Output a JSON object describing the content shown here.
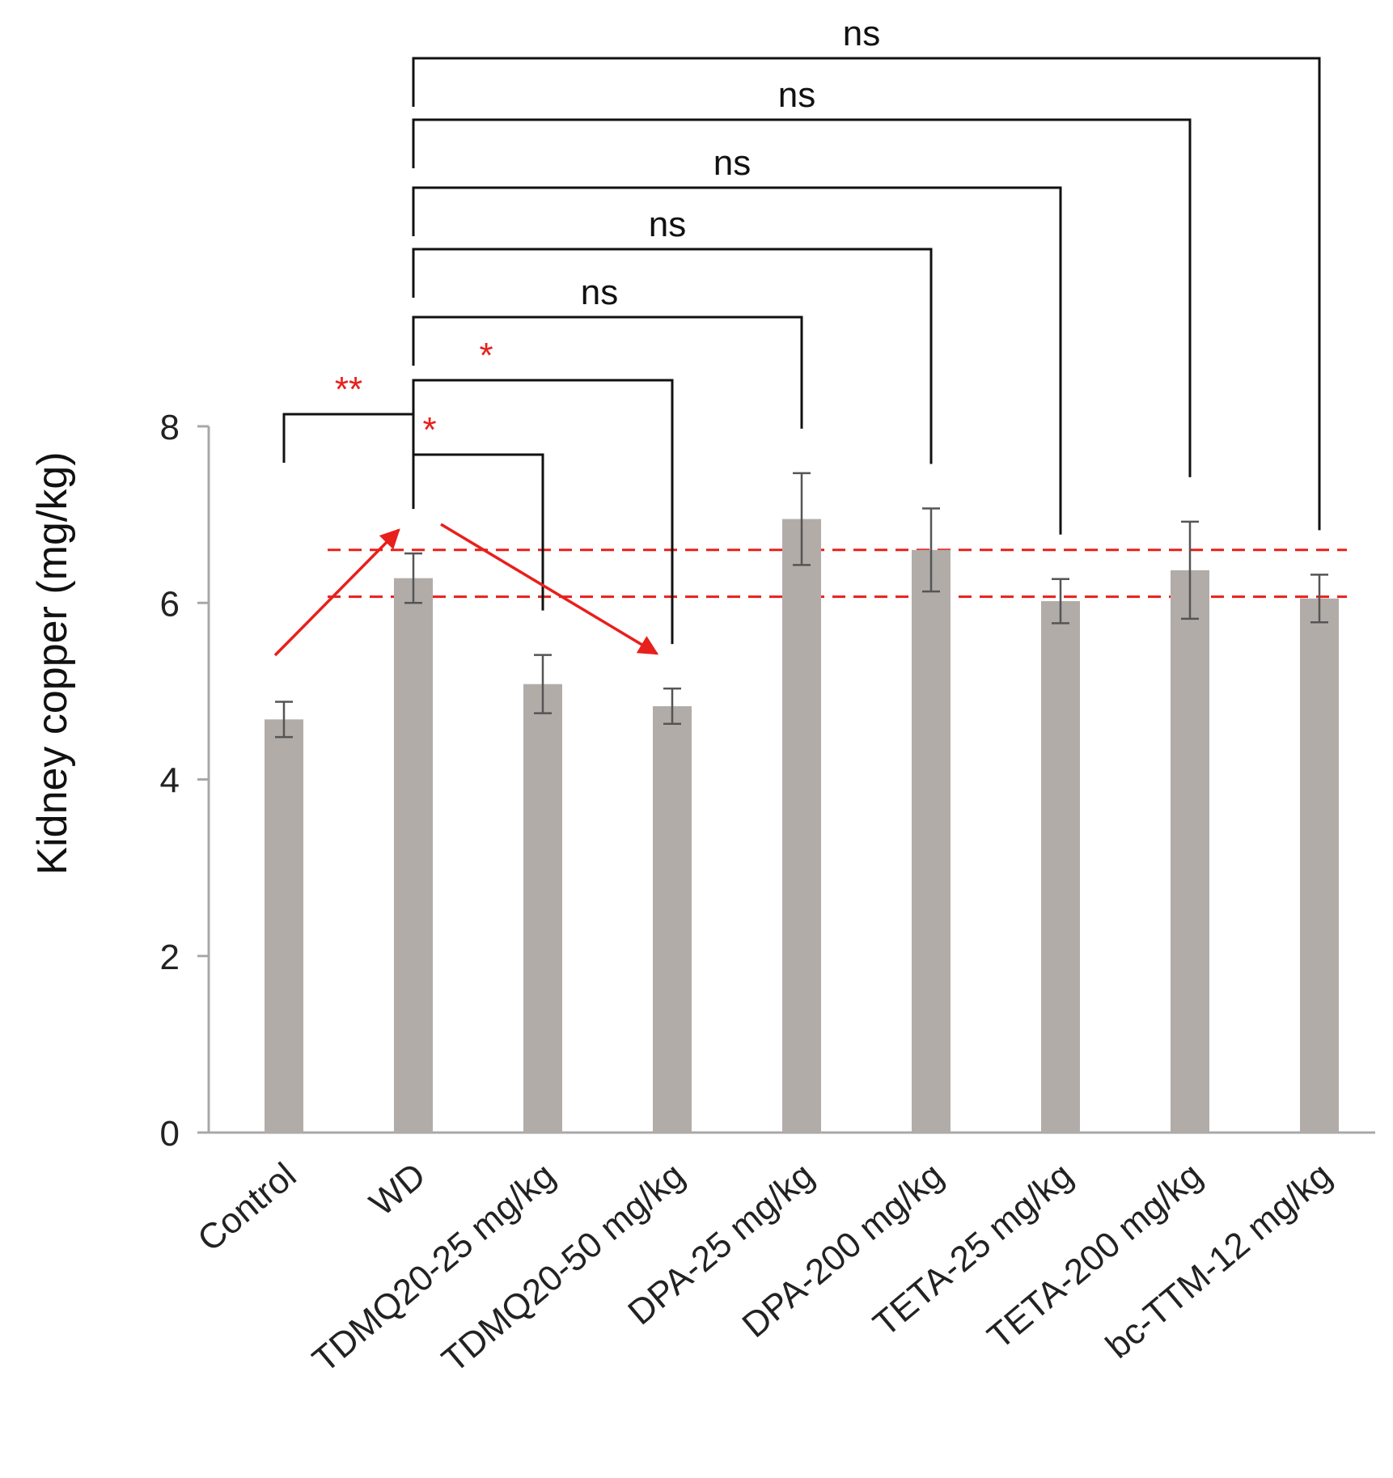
{
  "chart_data": {
    "type": "bar",
    "title": "",
    "xlabel": "",
    "ylabel": "Kidney copper  (mg/kg)",
    "ylim": [
      0,
      8
    ],
    "yticks": [
      0,
      2,
      4,
      6,
      8
    ],
    "grid": false,
    "categories": [
      "Control",
      "WD",
      "TDMQ20-25 mg/kg",
      "TDMQ20-50 mg/kg",
      "DPA-25 mg/kg",
      "DPA-200 mg/kg",
      "TETA-25 mg/kg",
      "TETA-200 mg/kg",
      "bc-TTM-12 mg/kg"
    ],
    "values": [
      4.68,
      6.28,
      5.08,
      4.83,
      6.95,
      6.6,
      6.02,
      6.37,
      6.05
    ],
    "errors": [
      0.2,
      0.28,
      0.33,
      0.2,
      0.52,
      0.47,
      0.25,
      0.55,
      0.27
    ],
    "reference_lines": [
      6.6,
      6.07
    ],
    "comparisons": [
      {
        "from": "Control",
        "to": "WD",
        "label": "**"
      },
      {
        "from": "WD",
        "to": "TDMQ20-25 mg/kg",
        "label": "*"
      },
      {
        "from": "WD",
        "to": "TDMQ20-50 mg/kg",
        "label": "*"
      },
      {
        "from": "WD",
        "to": "DPA-25 mg/kg",
        "label": "ns"
      },
      {
        "from": "WD",
        "to": "DPA-200 mg/kg",
        "label": "ns"
      },
      {
        "from": "WD",
        "to": "TETA-25 mg/kg",
        "label": "ns"
      },
      {
        "from": "WD",
        "to": "TETA-200 mg/kg",
        "label": "ns"
      },
      {
        "from": "WD",
        "to": "bc-TTM-12 mg/kg",
        "label": "ns"
      }
    ],
    "trend_arrows": [
      {
        "from": "Control",
        "to": "WD"
      },
      {
        "from": "WD",
        "to": "TDMQ20-50 mg/kg"
      }
    ],
    "colors": {
      "bar": "#b2aca9",
      "error": "#555555",
      "axis": "#a8a8a8",
      "bracket": "#111111",
      "significant": "#e8201c",
      "ns": "#111111",
      "reference": "#e8201c",
      "arrow": "#e8201c"
    }
  }
}
